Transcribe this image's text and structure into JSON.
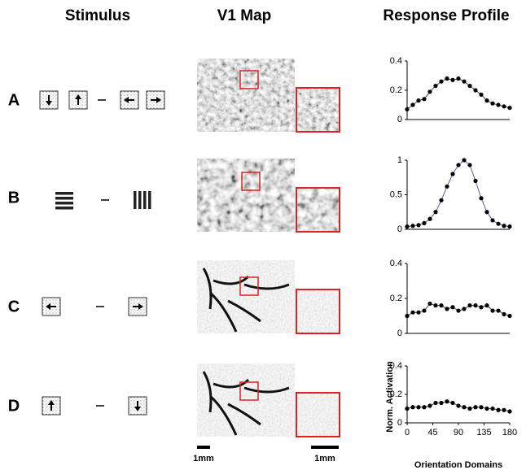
{
  "headers": [
    "Stimulus",
    "V1 Map",
    "Response Profile"
  ],
  "row_labels": [
    "A",
    "B",
    "C",
    "D"
  ],
  "scale_bars": [
    "1mm",
    "1mm"
  ],
  "chart_data": [
    {
      "type": "line",
      "x": [
        0,
        10,
        20,
        30,
        40,
        50,
        60,
        70,
        80,
        90,
        100,
        110,
        120,
        130,
        140,
        150,
        160,
        170,
        180
      ],
      "xlim": [
        0,
        180
      ],
      "ylim": [
        0,
        0.4
      ],
      "yticks": [
        0,
        0.2,
        0.4
      ],
      "color": "#444444",
      "values": [
        0.07,
        0.1,
        0.13,
        0.14,
        0.19,
        0.23,
        0.26,
        0.28,
        0.27,
        0.28,
        0.26,
        0.23,
        0.2,
        0.17,
        0.13,
        0.11,
        0.1,
        0.09,
        0.08
      ]
    },
    {
      "type": "line",
      "x": [
        0,
        10,
        20,
        30,
        40,
        50,
        60,
        70,
        80,
        90,
        100,
        110,
        120,
        130,
        140,
        150,
        160,
        170,
        180
      ],
      "xlim": [
        0,
        180
      ],
      "ylim": [
        0,
        1
      ],
      "yticks": [
        0,
        0.5,
        1
      ],
      "color": "#5a5aa8",
      "values": [
        0.04,
        0.05,
        0.06,
        0.09,
        0.15,
        0.25,
        0.42,
        0.62,
        0.8,
        0.93,
        1.0,
        0.93,
        0.7,
        0.45,
        0.25,
        0.13,
        0.08,
        0.05,
        0.04
      ]
    },
    {
      "type": "line",
      "x": [
        0,
        10,
        20,
        30,
        40,
        50,
        60,
        70,
        80,
        90,
        100,
        110,
        120,
        130,
        140,
        150,
        160,
        170,
        180
      ],
      "xlim": [
        0,
        180
      ],
      "ylim": [
        0,
        0.4
      ],
      "yticks": [
        0,
        0.2,
        0.4
      ],
      "color": "#444444",
      "values": [
        0.1,
        0.12,
        0.12,
        0.13,
        0.17,
        0.16,
        0.16,
        0.14,
        0.15,
        0.13,
        0.14,
        0.16,
        0.16,
        0.15,
        0.16,
        0.13,
        0.13,
        0.11,
        0.1
      ]
    },
    {
      "type": "line",
      "x": [
        0,
        10,
        20,
        30,
        40,
        50,
        60,
        70,
        80,
        90,
        100,
        110,
        120,
        130,
        140,
        150,
        160,
        170,
        180
      ],
      "xlim": [
        0,
        180
      ],
      "ylim": [
        0,
        0.4
      ],
      "yticks": [
        0,
        0.2,
        0.4
      ],
      "xticks": [
        0,
        45,
        90,
        135,
        180
      ],
      "color": "#444444",
      "values": [
        0.1,
        0.11,
        0.11,
        0.11,
        0.12,
        0.14,
        0.14,
        0.15,
        0.14,
        0.12,
        0.11,
        0.1,
        0.11,
        0.11,
        0.1,
        0.1,
        0.09,
        0.09,
        0.08
      ],
      "ylabel": "Norm. Activation",
      "xlabel": "Orientation Domains"
    }
  ]
}
